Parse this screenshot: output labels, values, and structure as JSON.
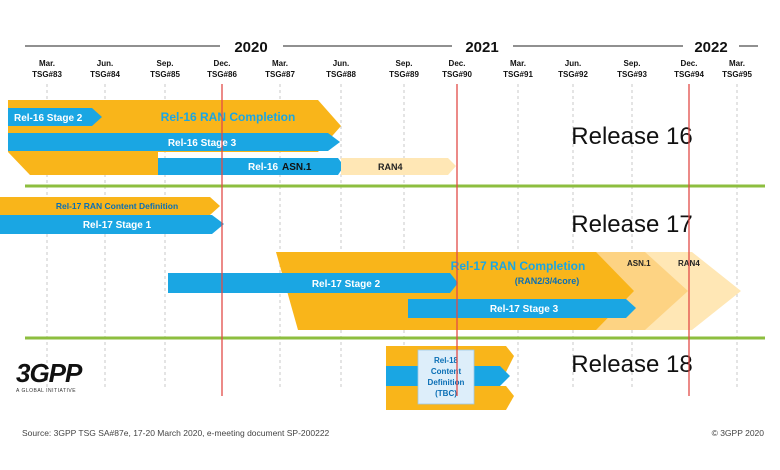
{
  "years": [
    {
      "label": "2020"
    },
    {
      "label": "2021"
    },
    {
      "label": "2022"
    }
  ],
  "meetings": [
    {
      "month": "Mar.",
      "tsg": "TSG#83"
    },
    {
      "month": "Jun.",
      "tsg": "TSG#84"
    },
    {
      "month": "Sep.",
      "tsg": "TSG#85"
    },
    {
      "month": "Dec.",
      "tsg": "TSG#86"
    },
    {
      "month": "Mar.",
      "tsg": "TSG#87"
    },
    {
      "month": "Jun.",
      "tsg": "TSG#88"
    },
    {
      "month": "Sep.",
      "tsg": "TSG#89"
    },
    {
      "month": "Dec.",
      "tsg": "TSG#90"
    },
    {
      "month": "Mar.",
      "tsg": "TSG#91"
    },
    {
      "month": "Jun.",
      "tsg": "TSG#92"
    },
    {
      "month": "Sep.",
      "tsg": "TSG#93"
    },
    {
      "month": "Dec.",
      "tsg": "TSG#94"
    },
    {
      "month": "Mar.",
      "tsg": "TSG#95"
    }
  ],
  "releases": {
    "rel16": {
      "title": "Release 16",
      "ran_completion": "Rel-16 RAN Completion",
      "stage2": "Rel-16 Stage 2",
      "stage3": "Rel-16 Stage 3",
      "asn1_prefix": "Rel-16",
      "asn1": "ASN.1",
      "ran4": "RAN4"
    },
    "rel17": {
      "title": "Release 17",
      "content_def": "Rel-17 RAN Content Definition",
      "stage1": "Rel-17 Stage 1",
      "ran_completion": "Rel-17 RAN Completion",
      "ran_completion_sub": "(RAN2/3/4core)",
      "stage2": "Rel-17 Stage 2",
      "stage3": "Rel-17 Stage 3",
      "asn1": "ASN.1",
      "ran4": "RAN4"
    },
    "rel18": {
      "title": "Release 18",
      "content_def": [
        "Rel-18",
        "Content",
        "Definition",
        "(TBC)"
      ]
    }
  },
  "logo": {
    "main": "3GPP",
    "sub": "A GLOBAL INITIATIVE"
  },
  "footer": {
    "source": "Source: 3GPP TSG SA#87e, 17-20 March 2020, e-meeting document SP-200222",
    "copyright": "© 3GPP 2020"
  },
  "colors": {
    "orange": "#F9B51A",
    "blue": "#1AA6E3",
    "blue_dark": "#0A6FB5",
    "peach": "#FFE7B5",
    "peach_mid": "#FDD383",
    "green": "#8DBE3F",
    "red": "#E24B47",
    "grid": "#BBBBBB",
    "label_light": "#FFFFFF"
  }
}
